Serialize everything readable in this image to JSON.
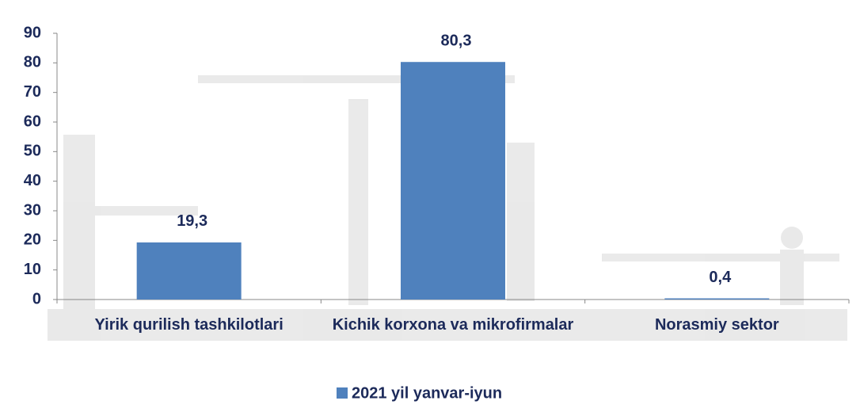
{
  "chart_data": {
    "type": "bar",
    "categories": [
      "Yirik qurilish tashkilotlari",
      "Kichik korxona va mikrofirmalar",
      "Norasmiy sektor"
    ],
    "series": [
      {
        "name": "2021 yil yanvar-iyun",
        "color": "#4f81bd",
        "values": [
          19.3,
          80.3,
          0.4
        ],
        "value_labels": [
          "19,3",
          "80,3",
          "0,4"
        ]
      }
    ],
    "ylim": [
      0,
      90
    ],
    "yticks": [
      0,
      10,
      20,
      30,
      40,
      50,
      60,
      70,
      80,
      90
    ]
  }
}
